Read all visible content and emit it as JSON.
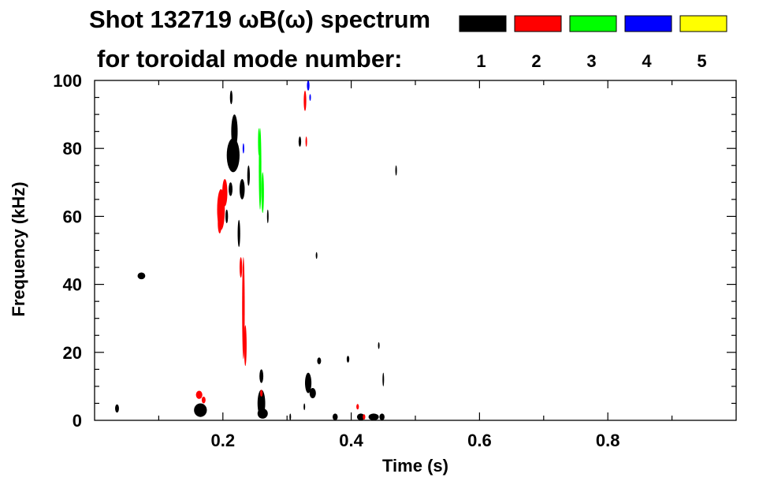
{
  "chart_data": {
    "type": "scatter",
    "title_line1": "Shot 132719 ωB(ω) spectrum",
    "title_line2": "for toroidal mode number:",
    "xlabel": "Time (s)",
    "ylabel": "Frequency (kHz)",
    "xlim": [
      0.0,
      1.0
    ],
    "ylim": [
      0,
      100
    ],
    "x_ticks": [
      {
        "value": 0.2,
        "label": "0.2"
      },
      {
        "value": 0.4,
        "label": "0.4"
      },
      {
        "value": 0.6,
        "label": "0.6"
      },
      {
        "value": 0.8,
        "label": "0.8"
      }
    ],
    "y_ticks": [
      {
        "value": 0,
        "label": "0"
      },
      {
        "value": 20,
        "label": "20"
      },
      {
        "value": 40,
        "label": "40"
      },
      {
        "value": 60,
        "label": "60"
      },
      {
        "value": 80,
        "label": "80"
      },
      {
        "value": 100,
        "label": "100"
      }
    ],
    "legend": [
      {
        "label": "1",
        "color": "#000000"
      },
      {
        "label": "2",
        "color": "#ff0000"
      },
      {
        "label": "3",
        "color": "#00ff00"
      },
      {
        "label": "4",
        "color": "#0000ff"
      },
      {
        "label": "5",
        "color": "#ffff00"
      }
    ],
    "series": [
      {
        "mode": "1",
        "color": "#000000",
        "blobs": [
          {
            "t": 0.035,
            "f": 3.5,
            "dt": 0.003,
            "df": 1.2
          },
          {
            "t": 0.073,
            "f": 42.5,
            "dt": 0.006,
            "df": 1.0
          },
          {
            "t": 0.165,
            "f": 3.0,
            "dt": 0.01,
            "df": 2.0
          },
          {
            "t": 0.216,
            "f": 78.0,
            "dt": 0.01,
            "df": 5.0
          },
          {
            "t": 0.218,
            "f": 85.0,
            "dt": 0.005,
            "df": 5.0
          },
          {
            "t": 0.213,
            "f": 95.0,
            "dt": 0.002,
            "df": 2.0
          },
          {
            "t": 0.212,
            "f": 68.0,
            "dt": 0.003,
            "df": 2.0
          },
          {
            "t": 0.206,
            "f": 60.0,
            "dt": 0.002,
            "df": 2.0
          },
          {
            "t": 0.23,
            "f": 68.0,
            "dt": 0.004,
            "df": 3.0
          },
          {
            "t": 0.225,
            "f": 55.0,
            "dt": 0.002,
            "df": 4.0
          },
          {
            "t": 0.26,
            "f": 5.0,
            "dt": 0.006,
            "df": 4.0
          },
          {
            "t": 0.262,
            "f": 2.0,
            "dt": 0.008,
            "df": 1.5
          },
          {
            "t": 0.26,
            "f": 13.0,
            "dt": 0.003,
            "df": 2.0
          },
          {
            "t": 0.24,
            "f": 72.0,
            "dt": 0.002,
            "df": 3.0
          },
          {
            "t": 0.27,
            "f": 60.0,
            "dt": 0.001,
            "df": 2.0
          },
          {
            "t": 0.333,
            "f": 11.0,
            "dt": 0.005,
            "df": 3.0
          },
          {
            "t": 0.34,
            "f": 8.0,
            "dt": 0.005,
            "df": 1.5
          },
          {
            "t": 0.35,
            "f": 17.5,
            "dt": 0.003,
            "df": 1.0
          },
          {
            "t": 0.32,
            "f": 82.0,
            "dt": 0.002,
            "df": 1.5
          },
          {
            "t": 0.346,
            "f": 48.5,
            "dt": 0.001,
            "df": 1.0
          },
          {
            "t": 0.375,
            "f": 1.0,
            "dt": 0.004,
            "df": 1.0
          },
          {
            "t": 0.395,
            "f": 18.0,
            "dt": 0.002,
            "df": 1.0
          },
          {
            "t": 0.415,
            "f": 1.0,
            "dt": 0.006,
            "df": 1.0
          },
          {
            "t": 0.435,
            "f": 1.0,
            "dt": 0.008,
            "df": 1.0
          },
          {
            "t": 0.448,
            "f": 1.0,
            "dt": 0.004,
            "df": 1.0
          },
          {
            "t": 0.443,
            "f": 22.0,
            "dt": 0.001,
            "df": 1.0
          },
          {
            "t": 0.45,
            "f": 12.0,
            "dt": 0.001,
            "df": 2.0
          },
          {
            "t": 0.47,
            "f": 73.5,
            "dt": 0.001,
            "df": 1.5
          },
          {
            "t": 0.305,
            "f": 1.0,
            "dt": 0.001,
            "df": 1.0
          },
          {
            "t": 0.327,
            "f": 4.0,
            "dt": 0.001,
            "df": 1.0
          }
        ]
      },
      {
        "mode": "2",
        "color": "#ff0000",
        "blobs": [
          {
            "t": 0.197,
            "f": 62.0,
            "dt": 0.006,
            "df": 6.0
          },
          {
            "t": 0.203,
            "f": 67.0,
            "dt": 0.004,
            "df": 4.0
          },
          {
            "t": 0.195,
            "f": 58.0,
            "dt": 0.003,
            "df": 3.0
          },
          {
            "t": 0.232,
            "f": 33.0,
            "dt": 0.002,
            "df": 15.0
          },
          {
            "t": 0.235,
            "f": 22.0,
            "dt": 0.002,
            "df": 6.0
          },
          {
            "t": 0.228,
            "f": 45.0,
            "dt": 0.002,
            "df": 3.0
          },
          {
            "t": 0.163,
            "f": 7.5,
            "dt": 0.005,
            "df": 1.2
          },
          {
            "t": 0.17,
            "f": 6.0,
            "dt": 0.003,
            "df": 1.0
          },
          {
            "t": 0.328,
            "f": 94.0,
            "dt": 0.002,
            "df": 3.0
          },
          {
            "t": 0.33,
            "f": 82.0,
            "dt": 0.001,
            "df": 1.5
          },
          {
            "t": 0.41,
            "f": 4.0,
            "dt": 0.002,
            "df": 0.8
          },
          {
            "t": 0.42,
            "f": 1.0,
            "dt": 0.002,
            "df": 0.8
          },
          {
            "t": 0.26,
            "f": 8.0,
            "dt": 0.002,
            "df": 1.0
          }
        ]
      },
      {
        "mode": "3",
        "color": "#00ff00",
        "blobs": [
          {
            "t": 0.258,
            "f": 74.0,
            "dt": 0.002,
            "df": 12.0
          },
          {
            "t": 0.262,
            "f": 67.0,
            "dt": 0.002,
            "df": 6.0
          },
          {
            "t": 0.256,
            "f": 82.0,
            "dt": 0.001,
            "df": 4.0
          }
        ]
      },
      {
        "mode": "4",
        "color": "#0000ff",
        "blobs": [
          {
            "t": 0.333,
            "f": 98.5,
            "dt": 0.002,
            "df": 1.5
          },
          {
            "t": 0.232,
            "f": 80.0,
            "dt": 0.001,
            "df": 1.5
          },
          {
            "t": 0.336,
            "f": 95.0,
            "dt": 0.001,
            "df": 1.0
          }
        ]
      }
    ]
  }
}
